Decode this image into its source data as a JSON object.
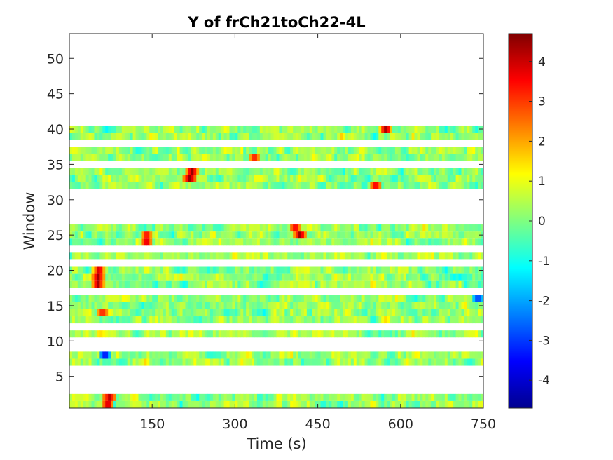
{
  "chart_data": {
    "type": "heatmap",
    "title": "Y of frCh21toCh22-4L",
    "xlabel": "Time (s)",
    "ylabel": "Window",
    "xlim": [
      0,
      750
    ],
    "ylim": [
      0.5,
      53.5
    ],
    "xticks": [
      150,
      300,
      450,
      600,
      750
    ],
    "yticks": [
      5,
      10,
      15,
      20,
      25,
      30,
      35,
      40,
      45,
      50
    ],
    "colormap": "jet",
    "clim": [
      -4.7,
      4.7
    ],
    "colorbar_ticks": [
      -4,
      -3,
      -2,
      -1,
      0,
      1,
      2,
      3,
      4
    ],
    "filled_windows": [
      1,
      2,
      7,
      8,
      11,
      13,
      14,
      15,
      16,
      18,
      19,
      20,
      22,
      24,
      25,
      26,
      32,
      33,
      34,
      36,
      37,
      39,
      40
    ],
    "hotspots": [
      {
        "window": 1,
        "time": 70,
        "value": 4.3
      },
      {
        "window": 2,
        "time": 72,
        "value": 4.2
      },
      {
        "window": 18,
        "time": 52,
        "value": 4.4
      },
      {
        "window": 19,
        "time": 52,
        "value": 4.5
      },
      {
        "window": 20,
        "time": 54,
        "value": 4.1
      },
      {
        "window": 24,
        "time": 140,
        "value": 4.2
      },
      {
        "window": 25,
        "time": 140,
        "value": 3.8
      },
      {
        "window": 25,
        "time": 418,
        "value": 4.5
      },
      {
        "window": 26,
        "time": 410,
        "value": 3.9
      },
      {
        "window": 33,
        "time": 218,
        "value": 4.6
      },
      {
        "window": 34,
        "time": 222,
        "value": 4.6
      },
      {
        "window": 32,
        "time": 555,
        "value": 4.0
      },
      {
        "window": 36,
        "time": 335,
        "value": 3.6
      },
      {
        "window": 40,
        "time": 573,
        "value": 4.4
      },
      {
        "window": 14,
        "time": 60,
        "value": 3.5
      },
      {
        "window": 8,
        "time": 65,
        "value": -3.8
      },
      {
        "window": 16,
        "time": 740,
        "value": -3.2
      }
    ]
  }
}
